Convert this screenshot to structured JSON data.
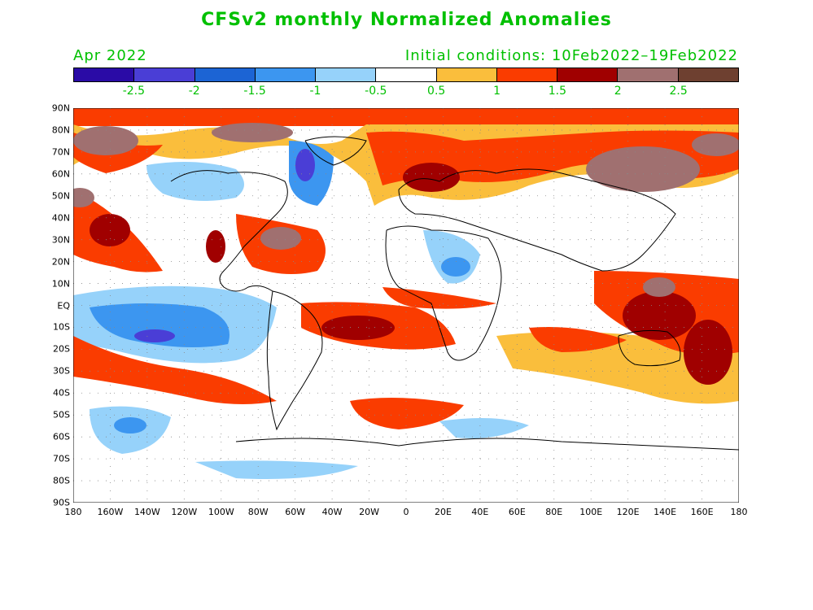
{
  "title": "CFSv2 monthly Normalized Anomalies",
  "month": "Apr 2022",
  "initial_conditions": "Initial conditions: 10Feb2022–19Feb2022",
  "colorbar": {
    "colors": [
      "#2a0ba6",
      "#4a3ed6",
      "#1c64d4",
      "#3c96f0",
      "#96d2fa",
      "#ffffff",
      "#fabe3c",
      "#fa3c00",
      "#a00000",
      "#a07070",
      "#6e4030"
    ],
    "labels": [
      "-2.5",
      "-2",
      "-1.5",
      "-1",
      "-0.5",
      "0.5",
      "1",
      "1.5",
      "2",
      "2.5"
    ]
  },
  "map": {
    "lat_labels": [
      "90N",
      "80N",
      "70N",
      "60N",
      "50N",
      "40N",
      "30N",
      "20N",
      "10N",
      "EQ",
      "10S",
      "20S",
      "30S",
      "40S",
      "50S",
      "60S",
      "70S",
      "80S",
      "90S"
    ],
    "lon_labels": [
      "180",
      "160W",
      "140W",
      "120W",
      "100W",
      "80W",
      "60W",
      "40W",
      "20W",
      "0",
      "20E",
      "40E",
      "60E",
      "80E",
      "100E",
      "120E",
      "140E",
      "160E",
      "180"
    ]
  }
}
